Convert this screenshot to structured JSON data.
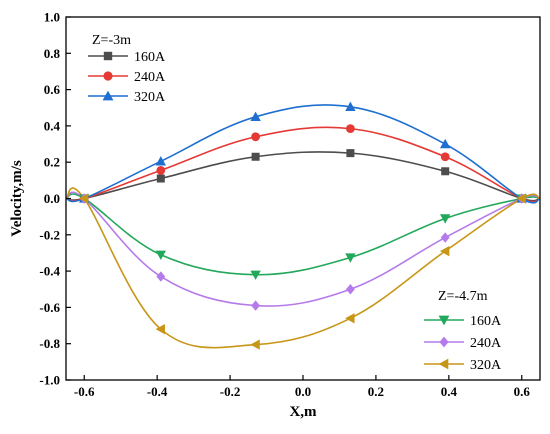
{
  "chart_data": {
    "type": "line",
    "xlabel": "X,m",
    "ylabel": "Velocity,m/s",
    "xlim": [
      -0.65,
      0.65
    ],
    "ylim": [
      -1.0,
      1.0
    ],
    "xticks": [
      -0.6,
      -0.4,
      -0.2,
      0.0,
      0.2,
      0.4,
      0.6
    ],
    "yticks": [
      -1.0,
      -0.8,
      -0.6,
      -0.4,
      -0.2,
      0.0,
      0.2,
      0.4,
      0.6,
      0.8,
      1.0
    ],
    "xtick_labels": [
      "-0.6",
      "-0.4",
      "-0.2",
      "0.0",
      "0.2",
      "0.4",
      "0.6"
    ],
    "ytick_labels": [
      "-1.0",
      "-0.8",
      "-0.6",
      "-0.4",
      "-0.2",
      "0.0",
      "0.2",
      "0.4",
      "0.6",
      "0.8",
      "1.0"
    ],
    "grid": false,
    "groups": [
      {
        "title": "Z=-3m",
        "legend_position": "top-left",
        "series": [
          {
            "name": "160A",
            "color": "#4d4d4d",
            "marker": "square",
            "points": [
              [
                -0.65,
                0.0
              ],
              [
                -0.6,
                0.0
              ],
              [
                -0.39,
                0.11
              ],
              [
                -0.13,
                0.23
              ],
              [
                0.13,
                0.25
              ],
              [
                0.39,
                0.15
              ],
              [
                0.6,
                0.0
              ],
              [
                0.65,
                0.0
              ]
            ]
          },
          {
            "name": "240A",
            "color": "#e53935",
            "marker": "circle",
            "points": [
              [
                -0.65,
                0.0
              ],
              [
                -0.6,
                0.0
              ],
              [
                -0.39,
                0.155
              ],
              [
                -0.13,
                0.34
              ],
              [
                0.13,
                0.385
              ],
              [
                0.39,
                0.23
              ],
              [
                0.6,
                0.0
              ],
              [
                0.65,
                0.0
              ]
            ]
          },
          {
            "name": "320A",
            "color": "#1e6fd0",
            "marker": "triangle-up",
            "points": [
              [
                -0.65,
                0.0
              ],
              [
                -0.6,
                0.0
              ],
              [
                -0.39,
                0.205
              ],
              [
                -0.13,
                0.45
              ],
              [
                0.13,
                0.505
              ],
              [
                0.39,
                0.3
              ],
              [
                0.6,
                0.0
              ],
              [
                0.65,
                0.0
              ]
            ]
          }
        ]
      },
      {
        "title": "Z=-4.7m",
        "legend_position": "bottom-right",
        "series": [
          {
            "name": "160A",
            "color": "#22a85a",
            "marker": "triangle-down",
            "points": [
              [
                -0.65,
                0.0
              ],
              [
                -0.6,
                0.0
              ],
              [
                -0.39,
                -0.31
              ],
              [
                -0.13,
                -0.42
              ],
              [
                0.13,
                -0.325
              ],
              [
                0.39,
                -0.11
              ],
              [
                0.6,
                0.0
              ],
              [
                0.65,
                0.0
              ]
            ]
          },
          {
            "name": "240A",
            "color": "#b57bea",
            "marker": "diamond",
            "points": [
              [
                -0.65,
                0.0
              ],
              [
                -0.6,
                0.0
              ],
              [
                -0.39,
                -0.43
              ],
              [
                -0.13,
                -0.59
              ],
              [
                0.13,
                -0.5
              ],
              [
                0.39,
                -0.215
              ],
              [
                0.6,
                0.0
              ],
              [
                0.65,
                0.0
              ]
            ]
          },
          {
            "name": "320A",
            "color": "#c89616",
            "marker": "triangle-left",
            "points": [
              [
                -0.65,
                0.0
              ],
              [
                -0.6,
                0.0
              ],
              [
                -0.39,
                -0.72
              ],
              [
                -0.13,
                -0.805
              ],
              [
                0.13,
                -0.66
              ],
              [
                0.39,
                -0.29
              ],
              [
                0.6,
                0.0
              ],
              [
                0.65,
                0.0
              ]
            ]
          }
        ]
      }
    ]
  }
}
